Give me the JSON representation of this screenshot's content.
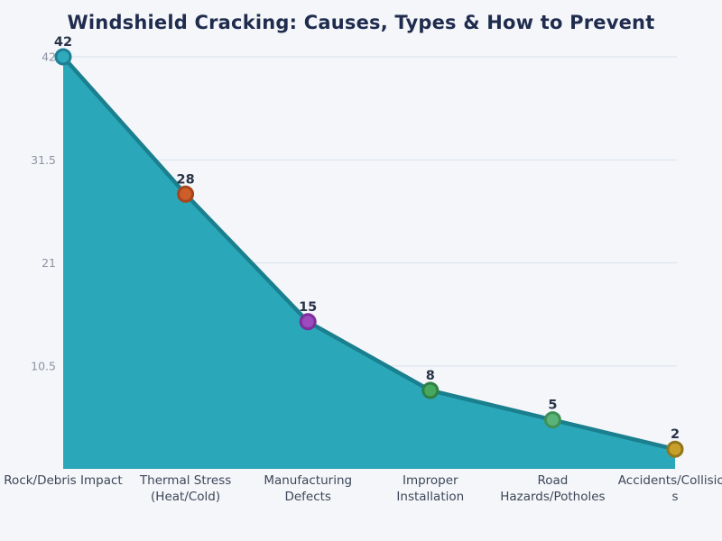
{
  "title": "Windshield Cracking: Causes, Types & How to Prevent",
  "chart_data": {
    "type": "area",
    "title": "Windshield Cracking: Causes, Types & How to Prevent",
    "categories": [
      "Rock/Debris Impact",
      "Thermal Stress (Heat/Cold)",
      "Manufacturing Defects",
      "Improper Installation",
      "Road Hazards/Potholes",
      "Accidents/Collisions"
    ],
    "category_display_lines": [
      [
        "Rock/Debris Impact"
      ],
      [
        "Thermal Stress",
        "(Heat/Cold)"
      ],
      [
        "Manufacturing",
        "Defects"
      ],
      [
        "Improper",
        "Installation"
      ],
      [
        "Road",
        "Hazards/Potholes"
      ],
      [
        "Accidents/Collision",
        "s"
      ]
    ],
    "values": [
      42,
      28,
      15,
      8,
      5,
      2
    ],
    "data_labels": [
      "42",
      "28",
      "15",
      "8",
      "5",
      "2"
    ],
    "y_ticks": [
      42,
      31.5,
      21,
      10.5
    ],
    "y_tick_labels": [
      "42",
      "31.5",
      "21",
      "10.5"
    ],
    "ylim": [
      0,
      42
    ],
    "xlabel": "",
    "ylabel": "",
    "grid": true,
    "legend": false,
    "colors": {
      "background": "#f4f6fa",
      "title": "#1f2c4e",
      "gridline": "#dde3ec",
      "y_tick_label": "#8d93a1",
      "x_tick_label": "#3d4757",
      "data_label": "#2a3448",
      "area_fill": "#2aa7b8",
      "line_stroke": "#1a7f8e",
      "marker_fills": [
        "#2fa9bc",
        "#cd5e2a",
        "#9b4bbd",
        "#46a85e",
        "#5cb377",
        "#c6a028"
      ],
      "marker_strokes": [
        "#1d7f93",
        "#a8441c",
        "#7b2f9b",
        "#2f8045",
        "#3f9058",
        "#93761a"
      ]
    }
  }
}
